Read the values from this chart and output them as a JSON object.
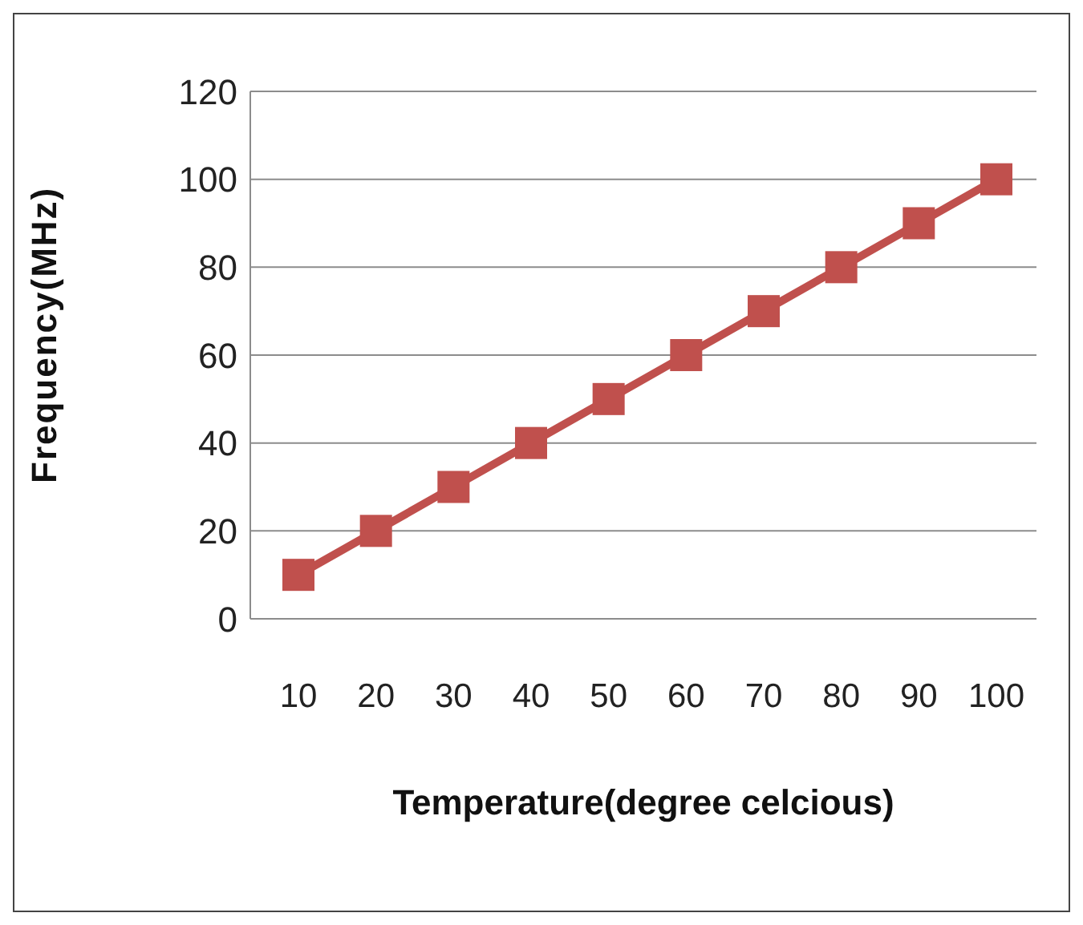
{
  "chart_data": {
    "type": "line",
    "xlabel": "Temperature(degree celcious)",
    "ylabel": "Frequency(MHz)",
    "categories": [
      "10",
      "20",
      "30",
      "40",
      "50",
      "60",
      "70",
      "80",
      "90",
      "100"
    ],
    "series": [
      {
        "color": "#c0504d",
        "values": [
          10,
          20,
          30,
          40,
          50,
          60,
          70,
          80,
          90,
          100
        ]
      }
    ],
    "ylim": [
      0,
      120
    ],
    "yticks": [
      0,
      20,
      40,
      60,
      80,
      100,
      120
    ],
    "grid": "y",
    "marker": "square",
    "legend": false
  }
}
